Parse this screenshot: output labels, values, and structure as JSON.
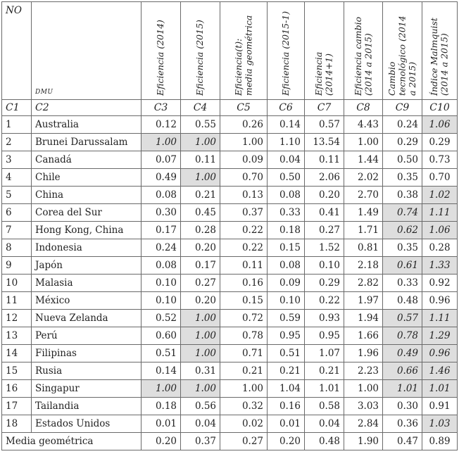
{
  "header": {
    "no": "NO",
    "dmu": "DMU",
    "cols": [
      "Eficiencia (2014)",
      "Eficiencia (2015)",
      "Eficiencia(t): media geométrica",
      "Eficiencia (2015-1)",
      "Eficiencia (2014+1)",
      "Eficiencia cambio (2014 a 2015)",
      "Cambio tecnológico (2014 a 2015)",
      "Índice Malmquist (2014 a 2015)"
    ],
    "codes": [
      "C1",
      "C2",
      "C3",
      "C4",
      "C5",
      "C6",
      "C7",
      "C8",
      "C9",
      "C10"
    ]
  },
  "rows": [
    {
      "no": "1",
      "dmu": "Australia",
      "v": [
        "0.12",
        "0.55",
        "0.26",
        "0.14",
        "0.57",
        "4.43",
        "0.24",
        "1.06"
      ],
      "shade": [
        false,
        false,
        false,
        false,
        false,
        false,
        false,
        true
      ]
    },
    {
      "no": "2",
      "dmu": "Brunei Darussalam",
      "v": [
        "1.00",
        "1.00",
        "1.00",
        "1.10",
        "13.54",
        "1.00",
        "0.29",
        "0.29"
      ],
      "shade": [
        true,
        true,
        false,
        false,
        false,
        false,
        false,
        false
      ]
    },
    {
      "no": "3",
      "dmu": "Canadá",
      "v": [
        "0.07",
        "0.11",
        "0.09",
        "0.04",
        "0.11",
        "1.44",
        "0.50",
        "0.73"
      ],
      "shade": [
        false,
        false,
        false,
        false,
        false,
        false,
        false,
        false
      ]
    },
    {
      "no": "4",
      "dmu": "Chile",
      "v": [
        "0.49",
        "1.00",
        "0.70",
        "0.50",
        "2.06",
        "2.02",
        "0.35",
        "0.70"
      ],
      "shade": [
        false,
        true,
        false,
        false,
        false,
        false,
        false,
        false
      ]
    },
    {
      "no": "5",
      "dmu": "China",
      "v": [
        "0.08",
        "0.21",
        "0.13",
        "0.08",
        "0.20",
        "2.70",
        "0.38",
        "1.02"
      ],
      "shade": [
        false,
        false,
        false,
        false,
        false,
        false,
        false,
        true
      ]
    },
    {
      "no": "6",
      "dmu": "Corea del Sur",
      "v": [
        "0.30",
        "0.45",
        "0.37",
        "0.33",
        "0.41",
        "1.49",
        "0.74",
        "1.11"
      ],
      "shade": [
        false,
        false,
        false,
        false,
        false,
        false,
        true,
        true
      ]
    },
    {
      "no": "7",
      "dmu": "Hong Kong, China",
      "v": [
        "0.17",
        "0.28",
        "0.22",
        "0.18",
        "0.27",
        "1.71",
        "0.62",
        "1.06"
      ],
      "shade": [
        false,
        false,
        false,
        false,
        false,
        false,
        true,
        true
      ]
    },
    {
      "no": "8",
      "dmu": "Indonesia",
      "v": [
        "0.24",
        "0.20",
        "0.22",
        "0.15",
        "1.52",
        "0.81",
        "0.35",
        "0.28"
      ],
      "shade": [
        false,
        false,
        false,
        false,
        false,
        false,
        false,
        false
      ]
    },
    {
      "no": "9",
      "dmu": "Japón",
      "v": [
        "0.08",
        "0.17",
        "0.11",
        "0.08",
        "0.10",
        "2.18",
        "0.61",
        "1.33"
      ],
      "shade": [
        false,
        false,
        false,
        false,
        false,
        false,
        true,
        true
      ]
    },
    {
      "no": "10",
      "dmu": "Malasia",
      "v": [
        "0.10",
        "0.27",
        "0.16",
        "0.09",
        "0.29",
        "2.82",
        "0.33",
        "0.92"
      ],
      "shade": [
        false,
        false,
        false,
        false,
        false,
        false,
        false,
        false
      ]
    },
    {
      "no": "11",
      "dmu": "México",
      "v": [
        "0.10",
        "0.20",
        "0.15",
        "0.10",
        "0.22",
        "1.97",
        "0.48",
        "0.96"
      ],
      "shade": [
        false,
        false,
        false,
        false,
        false,
        false,
        false,
        false
      ]
    },
    {
      "no": "12",
      "dmu": "Nueva Zelanda",
      "v": [
        "0.52",
        "1.00",
        "0.72",
        "0.59",
        "0.93",
        "1.94",
        "0.57",
        "1.11"
      ],
      "shade": [
        false,
        true,
        false,
        false,
        false,
        false,
        true,
        true
      ]
    },
    {
      "no": "13",
      "dmu": "Perú",
      "v": [
        "0.60",
        "1.00",
        "0.78",
        "0.95",
        "0.95",
        "1.66",
        "0.78",
        "1.29"
      ],
      "shade": [
        false,
        true,
        false,
        false,
        false,
        false,
        true,
        true
      ]
    },
    {
      "no": "14",
      "dmu": "Filipinas",
      "v": [
        "0.51",
        "1.00",
        "0.71",
        "0.51",
        "1.07",
        "1.96",
        "0.49",
        "0.96"
      ],
      "shade": [
        false,
        true,
        false,
        false,
        false,
        false,
        true,
        true
      ]
    },
    {
      "no": "15",
      "dmu": "Rusia",
      "v": [
        "0.14",
        "0.31",
        "0.21",
        "0.21",
        "0.21",
        "2.23",
        "0.66",
        "1.46"
      ],
      "shade": [
        false,
        false,
        false,
        false,
        false,
        false,
        true,
        true
      ]
    },
    {
      "no": "16",
      "dmu": "Singapur",
      "v": [
        "1.00",
        "1.00",
        "1.00",
        "1.04",
        "1.01",
        "1.00",
        "1.01",
        "1.01"
      ],
      "shade": [
        true,
        true,
        false,
        false,
        false,
        false,
        true,
        true
      ]
    },
    {
      "no": "17",
      "dmu": "Tailandia",
      "v": [
        "0.18",
        "0.56",
        "0.32",
        "0.16",
        "0.58",
        "3.03",
        "0.30",
        "0.91"
      ],
      "shade": [
        false,
        false,
        false,
        false,
        false,
        false,
        false,
        false
      ]
    },
    {
      "no": "18",
      "dmu": "Estados Unidos",
      "v": [
        "0.01",
        "0.04",
        "0.02",
        "0.01",
        "0.04",
        "2.84",
        "0.36",
        "1.03"
      ],
      "shade": [
        false,
        false,
        false,
        false,
        false,
        false,
        false,
        true
      ]
    }
  ],
  "footer": {
    "label": "Media geométrica",
    "v": [
      "0.20",
      "0.37",
      "0.27",
      "0.20",
      "0.48",
      "1.90",
      "0.47",
      "0.89"
    ]
  }
}
